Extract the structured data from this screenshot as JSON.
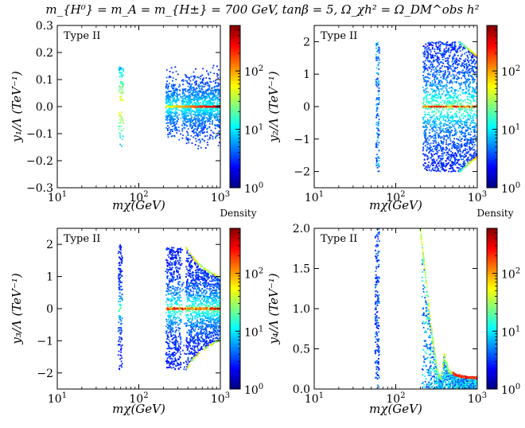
{
  "figure_title": "m_{H⁰} = m_A = m_{H±} = 700 GeV,  tanβ = 5,  Ω_χh² = Ω_DM^obs h²",
  "colorbar_label": "Density",
  "colormap": [
    "#00007f",
    "#0000ff",
    "#007fff",
    "#00ffff",
    "#7fff7f",
    "#ffff00",
    "#ff7f00",
    "#ff0000",
    "#7f0000"
  ],
  "chart_data": [
    {
      "type": "scatter",
      "panel_label": "Type II",
      "xlabel": "mχ(GeV)",
      "ylabel": "y₁/Λ (TeV⁻¹)",
      "xscale": "log",
      "xlim": [
        10,
        1000
      ],
      "ylim": [
        -0.3,
        0.3
      ],
      "xticks": [
        {
          "v": 10,
          "b": "10",
          "e": "1"
        },
        {
          "v": 100,
          "b": "10",
          "e": "2"
        },
        {
          "v": 1000,
          "b": "10",
          "e": "3"
        }
      ],
      "yticks": [
        -0.3,
        -0.2,
        -0.1,
        0.0,
        0.1,
        0.2,
        0.3
      ],
      "ytick_labels": [
        "−0.3",
        "−0.2",
        "−0.1",
        "0.0",
        "0.1",
        "0.2",
        "0.3"
      ],
      "colorbar_ticks": [
        {
          "v": 1,
          "b": "10",
          "e": "0"
        },
        {
          "v": 10,
          "b": "10",
          "e": "1"
        },
        {
          "v": 100,
          "b": "10",
          "e": "2"
        }
      ],
      "colorbar_max": 600,
      "colorbar_label": "Density",
      "regions": [
        {
          "x": [
            57,
            65
          ],
          "y": [
            -0.18,
            0.15
          ],
          "density": "low-medium",
          "note": "resonance strip near m_h/2"
        },
        {
          "x": [
            220,
            1000
          ],
          "y": [
            -0.2,
            0.2
          ],
          "density": "medium",
          "note": "band fanning out"
        },
        {
          "x": [
            220,
            1000
          ],
          "y": [
            -0.005,
            0.005
          ],
          "density": "high",
          "note": "dense line at y=0"
        }
      ]
    },
    {
      "type": "scatter",
      "panel_label": "Type II",
      "xlabel": "mχ(GeV)",
      "ylabel": "y₂/Λ (TeV⁻¹)",
      "xscale": "log",
      "xlim": [
        10,
        1000
      ],
      "ylim": [
        -2.5,
        2.5
      ],
      "xticks": [
        {
          "v": 10,
          "b": "10",
          "e": "1"
        },
        {
          "v": 100,
          "b": "10",
          "e": "2"
        },
        {
          "v": 1000,
          "b": "10",
          "e": "3"
        }
      ],
      "yticks": [
        -2,
        -1,
        0,
        1,
        2
      ],
      "ytick_labels": [
        "−2",
        "−1",
        "0",
        "1",
        "2"
      ],
      "colorbar_ticks": [
        {
          "v": 1,
          "b": "10",
          "e": "0"
        },
        {
          "v": 10,
          "b": "10",
          "e": "1"
        },
        {
          "v": 100,
          "b": "10",
          "e": "2"
        }
      ],
      "colorbar_max": 600,
      "colorbar_label": "Density",
      "regions": [
        {
          "x": [
            57,
            63
          ],
          "y": [
            -2.0,
            2.0
          ],
          "density": "low",
          "note": "resonance strip"
        },
        {
          "x": [
            220,
            1000
          ],
          "y": [
            -2.0,
            2.0
          ],
          "density": "medium",
          "note": "full band"
        },
        {
          "x": [
            220,
            1000
          ],
          "y": [
            -0.02,
            0.02
          ],
          "density": "high",
          "note": "dense line at y=0"
        }
      ]
    },
    {
      "type": "scatter",
      "panel_label": "Type II",
      "xlabel": "mχ(GeV)",
      "ylabel": "y₃/Λ (TeV⁻¹)",
      "xscale": "log",
      "xlim": [
        10,
        1000
      ],
      "ylim": [
        -2.5,
        2.5
      ],
      "xticks": [
        {
          "v": 10,
          "b": "10",
          "e": "1"
        },
        {
          "v": 100,
          "b": "10",
          "e": "2"
        },
        {
          "v": 1000,
          "b": "10",
          "e": "3"
        }
      ],
      "yticks": [
        -2,
        -1,
        0,
        1,
        2
      ],
      "ytick_labels": [
        "−2",
        "−1",
        "0",
        "1",
        "2"
      ],
      "colorbar_ticks": [
        {
          "v": 1,
          "b": "10",
          "e": "0"
        },
        {
          "v": 10,
          "b": "10",
          "e": "1"
        },
        {
          "v": 100,
          "b": "10",
          "e": "2"
        }
      ],
      "colorbar_max": 600,
      "colorbar_label": "Density",
      "regions": [
        {
          "x": [
            57,
            63
          ],
          "y": [
            -1.9,
            2.0
          ],
          "density": "low",
          "note": "resonance strip"
        },
        {
          "x": [
            220,
            1000
          ],
          "y": [
            -1.9,
            1.9
          ],
          "density": "medium",
          "note": "band with funnel boundary"
        },
        {
          "x": [
            220,
            1000
          ],
          "y": [
            -0.05,
            0.05
          ],
          "density": "high",
          "note": "dense line at y=0"
        }
      ]
    },
    {
      "type": "scatter",
      "panel_label": "Type II",
      "xlabel": "mχ(GeV)",
      "ylabel": "y₄/Λ (TeV⁻¹)",
      "xscale": "log",
      "xlim": [
        10,
        1000
      ],
      "ylim": [
        0.0,
        2.0
      ],
      "xticks": [
        {
          "v": 10,
          "b": "10",
          "e": "1"
        },
        {
          "v": 100,
          "b": "10",
          "e": "2"
        },
        {
          "v": 1000,
          "b": "10",
          "e": "3"
        }
      ],
      "yticks": [
        0.0,
        0.5,
        1.0,
        1.5,
        2.0
      ],
      "ytick_labels": [
        "0.0",
        "0.5",
        "1.0",
        "1.5",
        "2.0"
      ],
      "colorbar_ticks": [
        {
          "v": 1,
          "b": "10",
          "e": "0"
        },
        {
          "v": 10,
          "b": "10",
          "e": "1"
        },
        {
          "v": 100,
          "b": "10",
          "e": "2"
        }
      ],
      "colorbar_max": 600,
      "colorbar_label": "Density",
      "curve": [
        [
          200,
          2.0
        ],
        [
          230,
          1.45
        ],
        [
          260,
          0.95
        ],
        [
          300,
          0.45
        ],
        [
          330,
          0.2
        ],
        [
          360,
          0.12
        ],
        [
          380,
          0.3
        ],
        [
          395,
          0.45
        ],
        [
          410,
          0.35
        ],
        [
          450,
          0.22
        ],
        [
          550,
          0.17
        ],
        [
          700,
          0.15
        ],
        [
          1000,
          0.14
        ]
      ],
      "regions": [
        {
          "x": [
            57,
            63
          ],
          "y": [
            0.0,
            2.0
          ],
          "density": "low",
          "note": "resonance strip"
        },
        {
          "x": [
            200,
            1000
          ],
          "y": [
            0.0,
            2.0
          ],
          "density": "medium",
          "note": "below annihilation curve"
        }
      ]
    }
  ]
}
